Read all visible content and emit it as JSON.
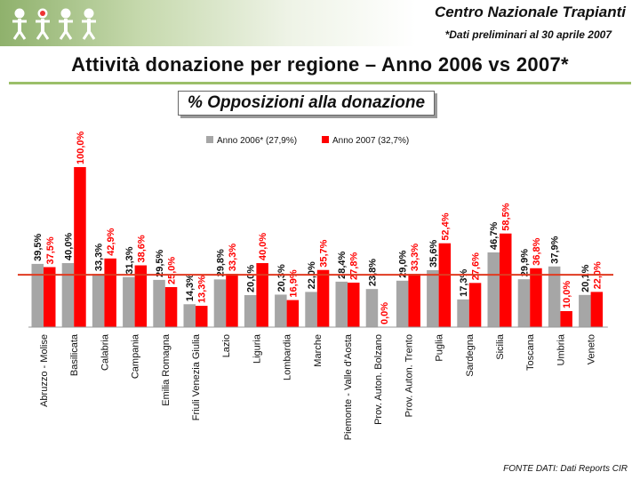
{
  "header": {
    "org_name": "Centro Nazionale Trapianti",
    "note": "*Dati preliminari al 30 aprile 2007"
  },
  "title": "Attività donazione per regione – Anno 2006 vs 2007*",
  "chart_title": "% Opposizioni alla donazione",
  "source": "FONTE DATI: Dati Reports CIR",
  "colors": {
    "series_2006": "#a6a6a6",
    "series_2007": "#ff0000",
    "header_green": "#8fb16c",
    "reference_line": "#e03a20"
  },
  "chart_data": {
    "type": "bar",
    "categories": [
      "Abruzzo - Molise",
      "Basilicata",
      "Calabria",
      "Campania",
      "Emilia Romagna",
      "Friuli Venezia Giulia",
      "Lazio",
      "Liguria",
      "Lombardia",
      "Marche",
      "Piemonte - Valle d'Aosta",
      "Prov. Auton. Bolzano",
      "Prov. Auton. Trento",
      "Puglia",
      "Sardegna",
      "Sicilia",
      "Toscana",
      "Umbria",
      "Veneto"
    ],
    "series": [
      {
        "name": "Anno 2006* (27,9%)",
        "values": [
          39.5,
          40.0,
          33.3,
          31.3,
          29.5,
          14.3,
          29.8,
          20.0,
          20.3,
          22.0,
          28.4,
          23.8,
          29.0,
          35.6,
          17.3,
          46.7,
          29.9,
          37.9,
          20.1
        ],
        "labels": [
          "39,5%",
          "40,0%",
          "33,3%",
          "31,3%",
          "29,5%",
          "14,3%",
          "29,8%",
          "20,0%",
          "20,3%",
          "22,0%",
          "28,4%",
          "23,8%",
          "29,0%",
          "35,6%",
          "17,3%",
          "46,7%",
          "29,9%",
          "37,9%",
          "20,1%"
        ]
      },
      {
        "name": "Anno 2007 (32,7%)",
        "values": [
          37.5,
          100.0,
          42.9,
          38.6,
          25.0,
          13.3,
          33.3,
          40.0,
          16.9,
          35.7,
          27.8,
          0.0,
          33.3,
          52.4,
          27.6,
          58.5,
          36.8,
          10.0,
          22.0
        ],
        "labels": [
          "37,5%",
          "100,0%",
          "42,9%",
          "38,6%",
          "25,0%",
          "13,3%",
          "33,3%",
          "40,0%",
          "16,9%",
          "35,7%",
          "27,8%",
          "0,0%",
          "33,3%",
          "52,4%",
          "27,6%",
          "58,5%",
          "36,8%",
          "10,0%",
          "22,0%"
        ]
      }
    ],
    "reference_line": 32.7,
    "ylim": [
      0,
      100
    ],
    "legend_position": "top",
    "grid": false
  }
}
